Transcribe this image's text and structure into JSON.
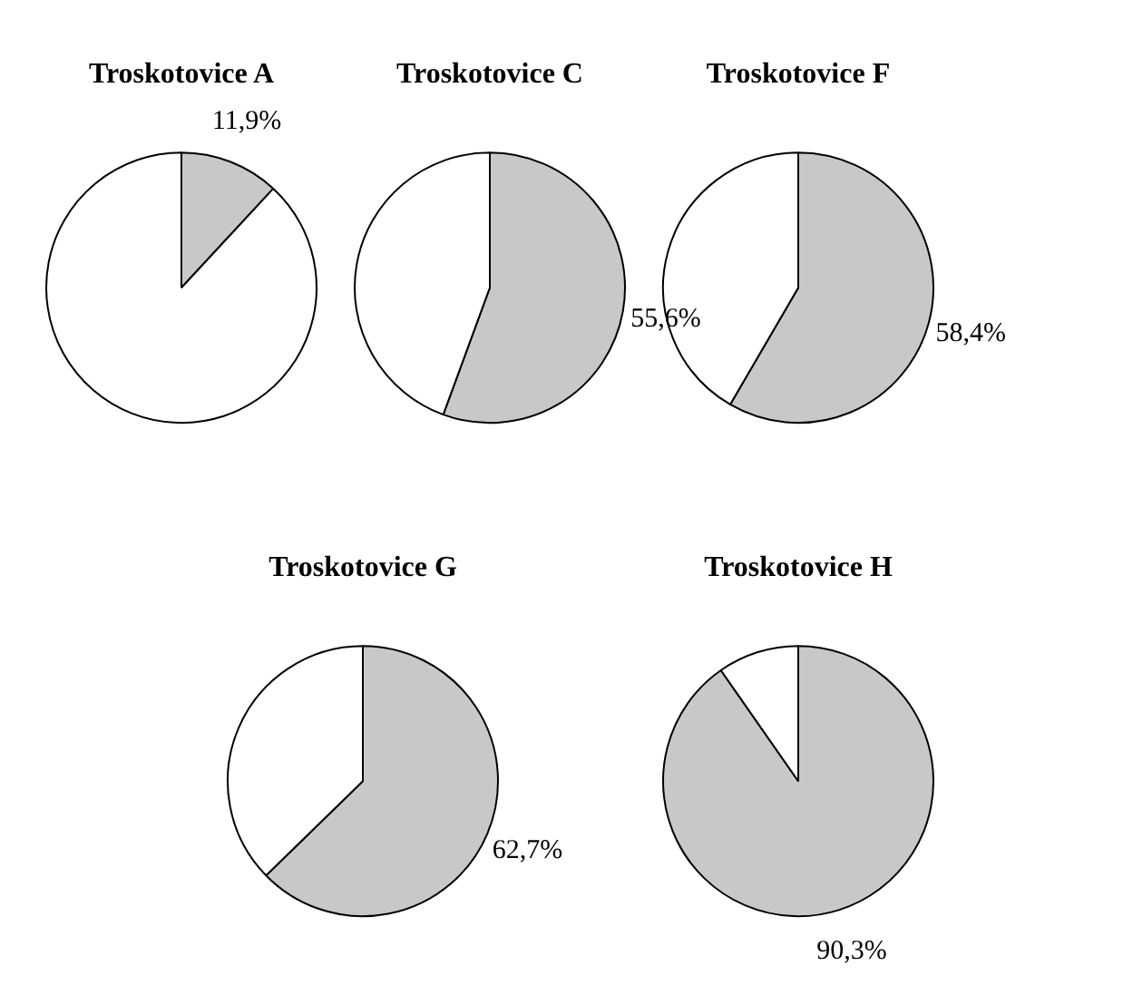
{
  "chart_data": [
    {
      "type": "pie",
      "title": "Troskotovice A",
      "categories": [
        null,
        null
      ],
      "values": [
        11.9,
        88.1
      ],
      "colors": [
        "#c8c8c8",
        "#ffffff"
      ],
      "value_labels": [
        "11,9%",
        null
      ],
      "legend": false
    },
    {
      "type": "pie",
      "title": "Troskotovice C",
      "categories": [
        null,
        null
      ],
      "values": [
        55.6,
        44.4
      ],
      "colors": [
        "#c8c8c8",
        "#ffffff"
      ],
      "value_labels": [
        "55,6%",
        null
      ],
      "legend": false
    },
    {
      "type": "pie",
      "title": "Troskotovice F",
      "categories": [
        null,
        null
      ],
      "values": [
        58.4,
        41.6
      ],
      "colors": [
        "#c8c8c8",
        "#ffffff"
      ],
      "value_labels": [
        "58,4%",
        null
      ],
      "legend": false
    },
    {
      "type": "pie",
      "title": "Troskotovice G",
      "categories": [
        null,
        null
      ],
      "values": [
        62.7,
        37.3
      ],
      "colors": [
        "#c8c8c8",
        "#ffffff"
      ],
      "value_labels": [
        "62,7%",
        null
      ],
      "legend": false
    },
    {
      "type": "pie",
      "title": "Troskotovice H",
      "categories": [
        null,
        null
      ],
      "values": [
        90.3,
        9.7
      ],
      "colors": [
        "#c8c8c8",
        "#ffffff"
      ],
      "value_labels": [
        "90,3%",
        null
      ],
      "legend": false
    }
  ]
}
